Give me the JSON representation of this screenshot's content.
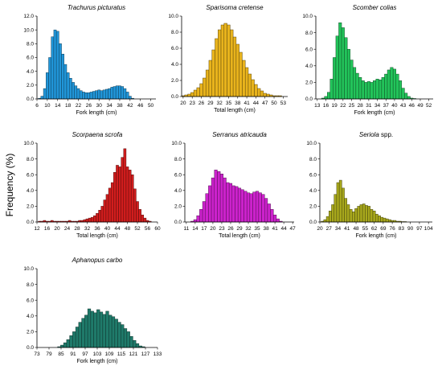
{
  "figure": {
    "ylabel": "Frequency (%)"
  },
  "chart_data": [
    {
      "type": "bar",
      "title": "Trachurus picturatus",
      "title_italic": true,
      "xlabel": "Fork length (cm)",
      "ylabel": "Frequency (%)",
      "ylim": [
        0,
        12
      ],
      "yticks": [
        "0.0",
        "2.0",
        "4.0",
        "6.0",
        "8.0",
        "10.0",
        "12.0"
      ],
      "xlim": [
        6,
        52
      ],
      "xticks": [
        6,
        10,
        14,
        18,
        22,
        26,
        30,
        34,
        38,
        42,
        46,
        50
      ],
      "bin_width": 1,
      "bins": [
        7,
        8,
        9,
        10,
        11,
        12,
        13,
        14,
        15,
        16,
        17,
        18,
        19,
        20,
        21,
        22,
        23,
        24,
        25,
        26,
        27,
        28,
        29,
        30,
        31,
        32,
        33,
        34,
        35,
        36,
        37,
        38,
        39,
        40,
        41,
        42,
        43
      ],
      "values": [
        0.1,
        0.4,
        1.5,
        3.8,
        6.0,
        9.0,
        10.0,
        9.8,
        8.0,
        6.5,
        5.0,
        3.8,
        3.0,
        2.4,
        1.9,
        1.5,
        1.2,
        1.0,
        0.9,
        0.9,
        1.0,
        1.1,
        1.2,
        1.3,
        1.2,
        1.3,
        1.4,
        1.5,
        1.7,
        1.8,
        1.9,
        1.9,
        1.8,
        1.5,
        1.0,
        0.4,
        0.1
      ],
      "color": "#2196d9"
    },
    {
      "type": "bar",
      "title": "Sparisoma cretense",
      "title_italic": true,
      "xlabel": "Total length (cm)",
      "ylabel": "Frequency (%)",
      "ylim": [
        0,
        10
      ],
      "yticks": [
        "0.0",
        "2.0",
        "4.0",
        "6.0",
        "8.0",
        "10.0"
      ],
      "xlim": [
        19.5,
        54.5
      ],
      "xticks": [
        20,
        23,
        26,
        29,
        32,
        35,
        38,
        41,
        44,
        47,
        50,
        53
      ],
      "bin_width": 1,
      "bins": [
        20,
        21,
        22,
        23,
        24,
        25,
        26,
        27,
        28,
        29,
        30,
        31,
        32,
        33,
        34,
        35,
        36,
        37,
        38,
        39,
        40,
        41,
        42,
        43,
        44,
        45,
        46,
        47,
        48,
        49,
        50,
        51,
        52
      ],
      "values": [
        0.1,
        0.2,
        0.3,
        0.5,
        0.8,
        1.1,
        1.6,
        2.3,
        3.3,
        4.5,
        5.8,
        7.2,
        8.3,
        8.9,
        9.1,
        8.9,
        8.3,
        7.4,
        6.5,
        5.5,
        4.5,
        3.6,
        2.8,
        2.1,
        1.5,
        1.0,
        0.7,
        0.4,
        0.3,
        0.2,
        0.1,
        0.1,
        0.1
      ],
      "color": "#e8b31c"
    },
    {
      "type": "bar",
      "title": "Scomber colias",
      "title_italic": true,
      "xlabel": "Fork length (cm)",
      "ylabel": "Frequency (%)",
      "ylim": [
        0,
        10
      ],
      "yticks": [
        "0.0",
        "2.0",
        "4.0",
        "6.0",
        "8.0",
        "10.0"
      ],
      "xlim": [
        12.5,
        53.5
      ],
      "xticks": [
        13,
        16,
        19,
        22,
        25,
        28,
        31,
        34,
        37,
        40,
        43,
        46,
        49,
        52
      ],
      "bin_width": 1,
      "bins": [
        15,
        16,
        17,
        18,
        19,
        20,
        21,
        22,
        23,
        24,
        25,
        26,
        27,
        28,
        29,
        30,
        31,
        32,
        33,
        34,
        35,
        36,
        37,
        38,
        39,
        40,
        41,
        42,
        43,
        44,
        45,
        46,
        47
      ],
      "values": [
        0.1,
        0.3,
        0.8,
        2.4,
        5.0,
        7.6,
        9.2,
        8.6,
        7.4,
        6.0,
        4.7,
        3.8,
        3.1,
        2.6,
        2.2,
        2.0,
        2.1,
        2.0,
        2.2,
        2.4,
        2.3,
        2.6,
        3.0,
        3.5,
        3.8,
        3.6,
        3.0,
        2.2,
        1.3,
        0.7,
        0.3,
        0.1,
        0.05
      ],
      "color": "#22c35a"
    },
    {
      "type": "bar",
      "title": "Scorpaena scrofa",
      "title_italic": true,
      "xlabel": "Total length (cm)",
      "ylabel": "Frequency (%)",
      "ylim": [
        0,
        10
      ],
      "yticks": [
        "0.0",
        "2.0",
        "4.0",
        "6.0",
        "8.0",
        "10.0"
      ],
      "xlim": [
        12,
        60
      ],
      "xticks": [
        12,
        16,
        20,
        24,
        28,
        32,
        36,
        40,
        44,
        48,
        52,
        56,
        60
      ],
      "bin_width": 1,
      "bins": [
        13,
        14,
        15,
        16,
        17,
        18,
        19,
        20,
        21,
        22,
        23,
        24,
        25,
        26,
        27,
        28,
        29,
        30,
        31,
        32,
        33,
        34,
        35,
        36,
        37,
        38,
        39,
        40,
        41,
        42,
        43,
        44,
        45,
        46,
        47,
        48,
        49,
        50,
        51,
        52,
        53,
        54,
        55,
        56,
        57
      ],
      "values": [
        0.1,
        0.1,
        0.2,
        0.1,
        0.1,
        0.2,
        0.1,
        0.1,
        0.1,
        0.1,
        0.1,
        0.1,
        0.2,
        0.1,
        0.1,
        0.1,
        0.2,
        0.2,
        0.3,
        0.4,
        0.5,
        0.6,
        0.8,
        1.1,
        1.5,
        2.0,
        2.8,
        3.5,
        4.3,
        5.0,
        6.3,
        7.2,
        7.0,
        8.2,
        9.3,
        7.0,
        6.6,
        6.0,
        4.2,
        2.6,
        1.6,
        0.9,
        0.5,
        0.2,
        0.1
      ],
      "color": "#d11d1d"
    },
    {
      "type": "bar",
      "title": "Serranus atricauda",
      "title_italic": true,
      "xlabel": "Total length (cm)",
      "ylabel": "Frequency (%)",
      "ylim": [
        0,
        10
      ],
      "yticks": [
        "0.0",
        "2.0",
        "4.0",
        "6.0",
        "8.0",
        "10.0"
      ],
      "xlim": [
        10.5,
        47.5
      ],
      "xticks": [
        11,
        14,
        17,
        20,
        23,
        26,
        29,
        32,
        35,
        38,
        41,
        44,
        47
      ],
      "bin_width": 1,
      "bins": [
        13,
        14,
        15,
        16,
        17,
        18,
        19,
        20,
        21,
        22,
        23,
        24,
        25,
        26,
        27,
        28,
        29,
        30,
        31,
        32,
        33,
        34,
        35,
        36,
        37,
        38,
        39,
        40,
        41,
        42,
        43
      ],
      "values": [
        0.1,
        0.3,
        0.8,
        1.6,
        2.6,
        3.6,
        4.6,
        5.6,
        6.6,
        6.4,
        6.1,
        5.6,
        5.0,
        4.9,
        4.6,
        4.5,
        4.3,
        4.1,
        3.9,
        3.7,
        3.6,
        3.8,
        3.9,
        3.7,
        3.5,
        3.0,
        2.3,
        1.6,
        0.9,
        0.4,
        0.1
      ],
      "color": "#cc22cc"
    },
    {
      "type": "bar",
      "title": "Seriola",
      "title_suffix": "spp.",
      "title_italic": true,
      "xlabel": "Fork length (cm)",
      "ylabel": "Frequency (%)",
      "ylim": [
        0,
        10
      ],
      "yticks": [
        "0.0",
        "2.0",
        "4.0",
        "6.0",
        "8.0",
        "10.0"
      ],
      "xlim": [
        20,
        107
      ],
      "xticks": [
        20,
        27,
        34,
        41,
        48,
        55,
        62,
        69,
        76,
        83,
        90,
        97,
        104
      ],
      "bin_width": 2,
      "bins": [
        22,
        24,
        26,
        28,
        30,
        32,
        34,
        36,
        38,
        40,
        42,
        44,
        46,
        48,
        50,
        52,
        54,
        56,
        58,
        60,
        62,
        64,
        66,
        68,
        70,
        72,
        74,
        76,
        78,
        80,
        82,
        84,
        86
      ],
      "values": [
        0.1,
        0.3,
        0.7,
        1.4,
        2.2,
        3.5,
        5.0,
        5.3,
        4.3,
        3.0,
        2.2,
        1.6,
        1.3,
        1.7,
        2.0,
        2.2,
        2.3,
        2.1,
        2.0,
        1.6,
        1.4,
        1.0,
        0.8,
        0.6,
        0.5,
        0.4,
        0.3,
        0.2,
        0.2,
        0.1,
        0.1,
        0.05,
        0.05
      ],
      "color": "#a8a81c"
    },
    {
      "type": "bar",
      "title": "Aphanopus carbo",
      "title_italic": true,
      "xlabel": "Fork length (cm)",
      "ylabel": "Frequency (%)",
      "ylim": [
        0,
        10
      ],
      "yticks": [
        "0.0",
        "2.0",
        "4.0",
        "6.0",
        "8.0",
        "10.0"
      ],
      "xlim": [
        73,
        133
      ],
      "xticks": [
        73,
        79,
        85,
        91,
        97,
        103,
        109,
        115,
        121,
        127,
        133
      ],
      "bin_width": 1.5,
      "bins": [
        84,
        85.5,
        87,
        88.5,
        90,
        91.5,
        93,
        94.5,
        96,
        97.5,
        99,
        100.5,
        102,
        103.5,
        105,
        106.5,
        108,
        109.5,
        111,
        112.5,
        114,
        115.5,
        117,
        118.5,
        120,
        121.5,
        123,
        124.5,
        126
      ],
      "values": [
        0.1,
        0.3,
        0.6,
        1.0,
        1.5,
        2.0,
        2.6,
        3.2,
        3.7,
        4.1,
        4.9,
        4.6,
        4.4,
        4.8,
        4.5,
        4.2,
        4.6,
        4.1,
        3.9,
        3.6,
        3.2,
        2.9,
        2.4,
        2.0,
        1.4,
        0.9,
        0.5,
        0.2,
        0.1
      ],
      "color": "#1f7a6a"
    }
  ]
}
